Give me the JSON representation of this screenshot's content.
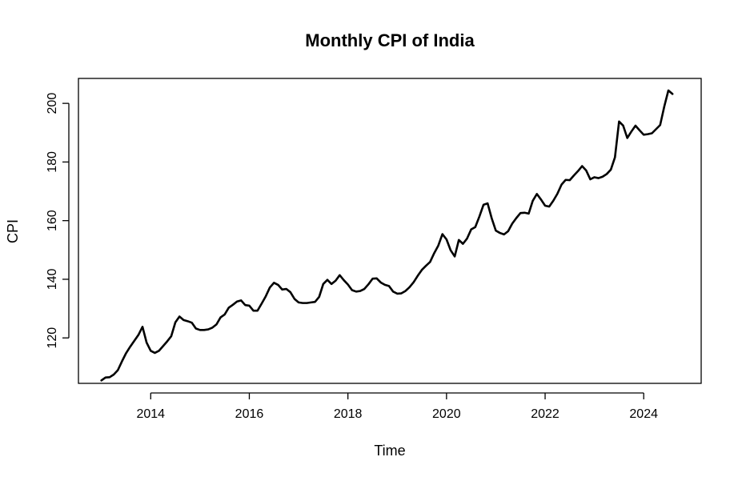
{
  "chart_data": {
    "type": "line",
    "title": "Monthly CPI of India",
    "xlabel": "Time",
    "ylabel": "CPI",
    "xlim": [
      2013,
      2024.7
    ],
    "ylim": [
      104.5,
      208.5
    ],
    "x_ticks": [
      2014,
      2016,
      2018,
      2020,
      2022,
      2024
    ],
    "x_tick_labels": [
      "2014",
      "2016",
      "2018",
      "2020",
      "2022",
      "2024"
    ],
    "y_ticks": [
      120,
      140,
      160,
      180,
      200
    ],
    "y_tick_labels": [
      "120",
      "140",
      "160",
      "180",
      "200"
    ],
    "grid": false,
    "legend": "none",
    "line_color": "#000000",
    "x_start": 2013,
    "x_step": 0.0833333,
    "series": [
      {
        "values": [
          105.5,
          106.5,
          106.6,
          107.5,
          109.0,
          112.0,
          114.8,
          117.0,
          119.0,
          121.0,
          123.8,
          118.4,
          115.6,
          114.9,
          115.6,
          117.2,
          118.8,
          120.6,
          125.3,
          127.3,
          126.1,
          125.7,
          125.2,
          123.2,
          122.7,
          122.7,
          122.9,
          123.5,
          124.6,
          127.0,
          128.0,
          130.3,
          131.3,
          132.4,
          132.8,
          131.2,
          131.0,
          129.3,
          129.3,
          131.7,
          134.2,
          137.2,
          138.8,
          138.1,
          136.5,
          136.7,
          135.6,
          133.3,
          132.1,
          131.9,
          131.9,
          132.1,
          132.3,
          134.0,
          138.4,
          139.8,
          138.4,
          139.5,
          141.4,
          139.7,
          138.2,
          136.3,
          135.8,
          136.0,
          136.7,
          138.3,
          140.2,
          140.3,
          138.9,
          138.1,
          137.7,
          135.8,
          135.1,
          135.2,
          136.0,
          137.3,
          139.0,
          141.2,
          143.2,
          144.6,
          145.9,
          148.9,
          151.5,
          155.4,
          153.6,
          149.9,
          147.8,
          153.4,
          152.1,
          153.9,
          157.0,
          157.8,
          161.4,
          165.4,
          165.9,
          160.8,
          156.6,
          155.8,
          155.3,
          156.4,
          159.0,
          160.9,
          162.6,
          162.7,
          162.4,
          166.8,
          169.1,
          167.2,
          165.1,
          164.8,
          166.8,
          169.2,
          172.3,
          173.9,
          173.8,
          175.4,
          176.9,
          178.6,
          177.1,
          174.1,
          174.8,
          174.5,
          175.0,
          175.9,
          177.4,
          181.6,
          193.8,
          192.4,
          188.2,
          190.4,
          192.4,
          190.8,
          189.3,
          189.5,
          189.8,
          191.2,
          192.6,
          198.9,
          204.4,
          203.2
        ]
      }
    ]
  }
}
